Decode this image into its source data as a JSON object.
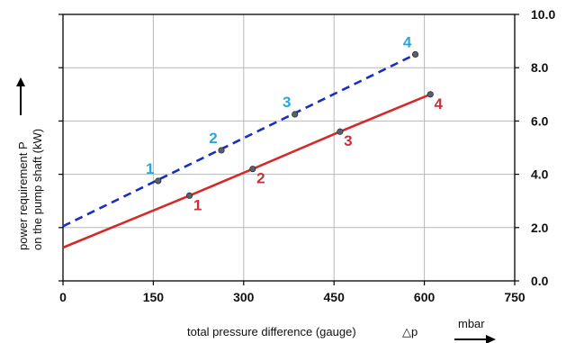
{
  "chart_data": {
    "type": "line",
    "ylabel_line1": "power requirement P",
    "ylabel_line2": "on the pump shaft (kW)",
    "xlabel": "total pressure difference (gauge)",
    "xlabel_symbol": "△p",
    "xunit": "mbar",
    "xlim": [
      0,
      750
    ],
    "ylim": [
      0.0,
      10.0
    ],
    "xticks": [
      0,
      150,
      300,
      450,
      600,
      750
    ],
    "xtick_labels": [
      "0",
      "150",
      "300",
      "450",
      "600",
      "750"
    ],
    "yticks": [
      0,
      2,
      4,
      6,
      8,
      10
    ],
    "ytick_labels": [
      "0.0",
      "2.0",
      "4.0",
      "6.0",
      "8.0",
      "10.0"
    ],
    "grid": true,
    "series": [
      {
        "color": "#1a2fbf",
        "label_color": "#2aa6d8",
        "dash": true,
        "line": [
          [
            0,
            2.05
          ],
          [
            585,
            8.5
          ]
        ],
        "points": [
          {
            "x": 158,
            "y": 3.75,
            "label": "1"
          },
          {
            "x": 263,
            "y": 4.9,
            "label": "2"
          },
          {
            "x": 385,
            "y": 6.25,
            "label": "3"
          },
          {
            "x": 585,
            "y": 8.5,
            "label": "4"
          }
        ]
      },
      {
        "color": "#d42a2a",
        "label_color": "#c8303c",
        "dash": false,
        "line": [
          [
            0,
            1.25
          ],
          [
            210,
            3.2
          ],
          [
            315,
            4.2
          ],
          [
            460,
            5.6
          ],
          [
            610,
            7.0
          ]
        ],
        "points": [
          {
            "x": 210,
            "y": 3.2,
            "label": "1"
          },
          {
            "x": 315,
            "y": 4.2,
            "label": "2"
          },
          {
            "x": 460,
            "y": 5.6,
            "label": "3"
          },
          {
            "x": 610,
            "y": 7.0,
            "label": "4"
          }
        ]
      }
    ]
  }
}
